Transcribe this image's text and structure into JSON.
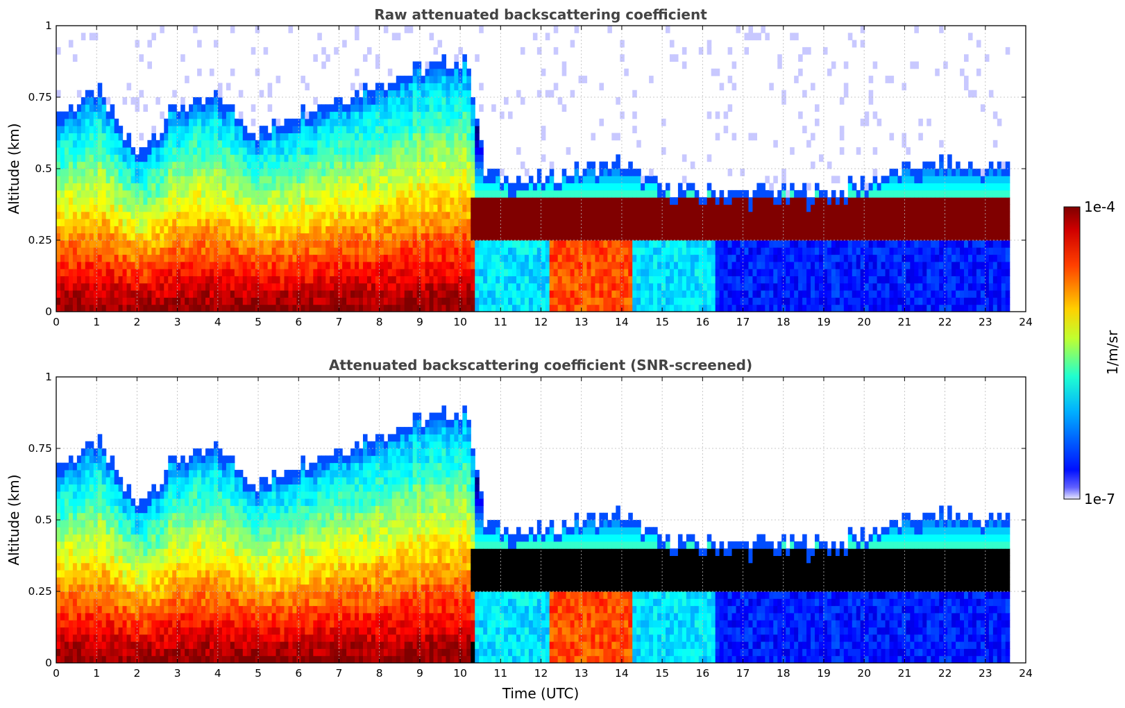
{
  "chart_data": [
    {
      "type": "heatmap",
      "title": "Raw attenuated backscattering coefficient",
      "xlabel": "",
      "ylabel": "Altitude (km)",
      "xlim": [
        0,
        24
      ],
      "ylim": [
        0,
        1
      ],
      "xticks": [
        "0",
        "1",
        "2",
        "3",
        "4",
        "5",
        "6",
        "7",
        "8",
        "9",
        "10",
        "11",
        "12",
        "13",
        "14",
        "15",
        "16",
        "17",
        "18",
        "19",
        "20",
        "21",
        "22",
        "23",
        "24"
      ],
      "yticks": [
        "0",
        "0.25",
        "0.5",
        "0.75",
        "1"
      ],
      "grid": true,
      "screened": false,
      "data_end_hour": 23.6,
      "layer_profile": {
        "hours": [
          0,
          1,
          2,
          3,
          4,
          5,
          6,
          7,
          8,
          9,
          10.2,
          10.6,
          11,
          12,
          13,
          14,
          15,
          16,
          17,
          18,
          19,
          20,
          21,
          22,
          23,
          23.6
        ],
        "top_km": [
          0.68,
          0.78,
          0.55,
          0.72,
          0.75,
          0.62,
          0.7,
          0.75,
          0.8,
          0.85,
          0.88,
          0.49,
          0.47,
          0.46,
          0.5,
          0.52,
          0.43,
          0.42,
          0.42,
          0.42,
          0.42,
          0.45,
          0.5,
          0.52,
          0.5,
          0.5
        ],
        "dense_layer_hours": [
          10.3,
          23.6
        ],
        "dense_layer_km": [
          0.26,
          0.4
        ]
      }
    },
    {
      "type": "heatmap",
      "title": "Attenuated backscattering coefficient (SNR-screened)",
      "xlabel": "Time (UTC)",
      "ylabel": "Altitude (km)",
      "xlim": [
        0,
        24
      ],
      "ylim": [
        0,
        1
      ],
      "xticks": [
        "0",
        "1",
        "2",
        "3",
        "4",
        "5",
        "6",
        "7",
        "8",
        "9",
        "10",
        "11",
        "12",
        "13",
        "14",
        "15",
        "16",
        "17",
        "18",
        "19",
        "20",
        "21",
        "22",
        "23",
        "24"
      ],
      "yticks": [
        "0",
        "0.25",
        "0.5",
        "0.75",
        "1"
      ],
      "grid": true,
      "screened": true,
      "data_end_hour": 23.6,
      "masked_color": "#000000"
    }
  ],
  "colorbar": {
    "min_label": "1e-7",
    "max_label": "1e-4",
    "unit_label": "1/m/sr",
    "scale": "log",
    "colormap": "jet"
  }
}
